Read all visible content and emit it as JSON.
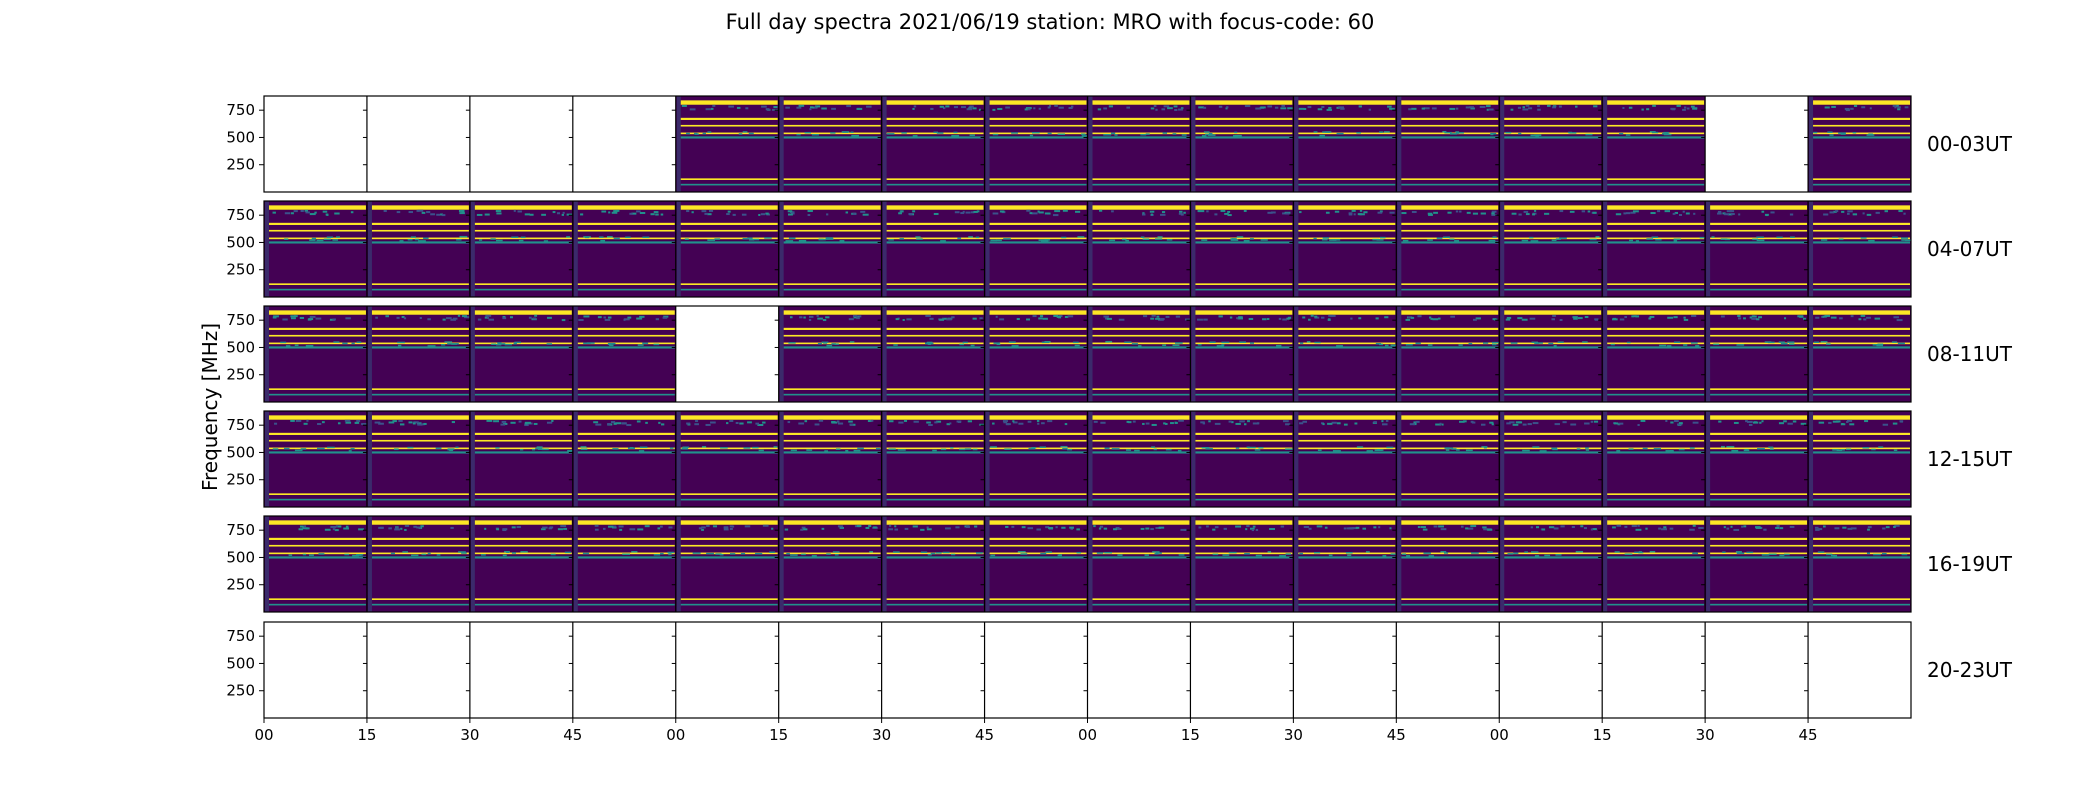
{
  "chart_data": {
    "type": "heatmap",
    "title": "Full day spectra 2021/06/19 station: MRO with focus-code: 60",
    "ylabel": "Frequency [MHz]",
    "xlabel": "",
    "ylim": [
      0,
      880
    ],
    "yticks": [
      250,
      500,
      750
    ],
    "x_tick_labels": [
      "00",
      "15",
      "30",
      "45",
      "00",
      "15",
      "30",
      "45",
      "00",
      "15",
      "30",
      "45",
      "00",
      "15",
      "30",
      "45"
    ],
    "colormap": "viridis",
    "colors": {
      "background": "#440154",
      "high": "#fde725",
      "mid": "#21918c",
      "low": "#3b528b"
    },
    "rows": [
      {
        "label": "00-03UT",
        "present": [
          false,
          false,
          false,
          false,
          true,
          true,
          true,
          true,
          true,
          true,
          true,
          true,
          true,
          true,
          false,
          true
        ]
      },
      {
        "label": "04-07UT",
        "present": [
          true,
          true,
          true,
          true,
          true,
          true,
          true,
          true,
          true,
          true,
          true,
          true,
          true,
          true,
          true,
          true
        ]
      },
      {
        "label": "08-11UT",
        "present": [
          true,
          true,
          true,
          true,
          false,
          true,
          true,
          true,
          true,
          true,
          true,
          true,
          true,
          true,
          true,
          true
        ]
      },
      {
        "label": "12-15UT",
        "present": [
          true,
          true,
          true,
          true,
          true,
          true,
          true,
          true,
          true,
          true,
          true,
          true,
          true,
          true,
          true,
          true
        ]
      },
      {
        "label": "16-19UT",
        "present": [
          true,
          true,
          true,
          true,
          true,
          true,
          true,
          true,
          true,
          true,
          true,
          true,
          true,
          true,
          true,
          true
        ]
      },
      {
        "label": "20-23UT",
        "present": [
          false,
          false,
          false,
          false,
          false,
          false,
          false,
          false,
          false,
          false,
          false,
          false,
          false,
          false,
          false,
          false
        ]
      }
    ],
    "bands": [
      {
        "freq": [
          800,
          840
        ],
        "color": "#fde725"
      },
      {
        "freq": [
          660,
          680
        ],
        "color": "#fde725"
      },
      {
        "freq": [
          600,
          615
        ],
        "color": "#fde725"
      },
      {
        "freq": [
          530,
          545
        ],
        "color": "#fde725"
      },
      {
        "freq": [
          490,
          510
        ],
        "color": "#21918c"
      },
      {
        "freq": [
          110,
          125
        ],
        "color": "#fde725"
      },
      {
        "freq": [
          60,
          75
        ],
        "color": "#21918c"
      }
    ]
  }
}
